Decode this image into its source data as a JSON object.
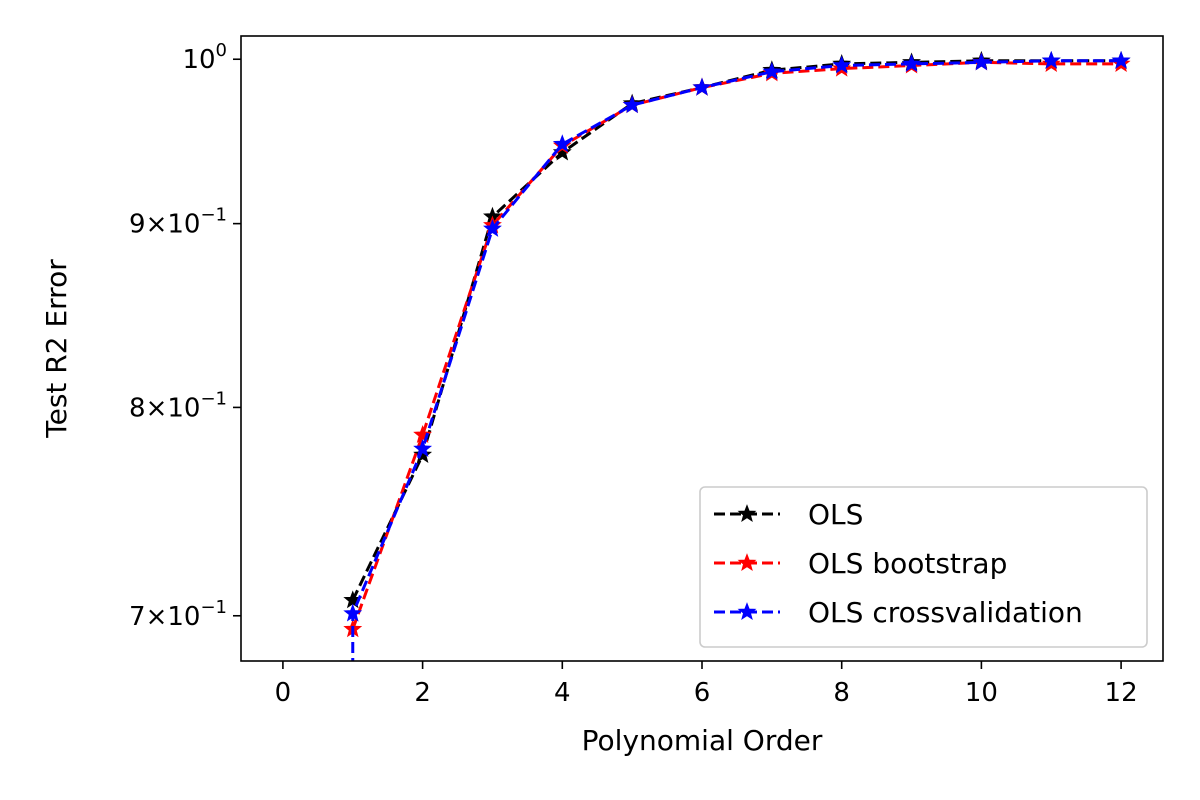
{
  "chart_data": {
    "type": "line",
    "title": "",
    "xlabel": "Polynomial Order",
    "ylabel": "Test R2 Error",
    "yscale": "log",
    "xlim": [
      -0.6,
      12.6
    ],
    "ylim": [
      0.68,
      1.015
    ],
    "x_ticks": [
      {
        "value": 0,
        "label": "0"
      },
      {
        "value": 2,
        "label": "2"
      },
      {
        "value": 4,
        "label": "4"
      },
      {
        "value": 6,
        "label": "6"
      },
      {
        "value": 8,
        "label": "8"
      },
      {
        "value": 10,
        "label": "10"
      },
      {
        "value": 12,
        "label": "12"
      }
    ],
    "y_ticks": [
      {
        "value": 0.7,
        "mant": "7",
        "exp": "−1"
      },
      {
        "value": 0.8,
        "mant": "8",
        "exp": "−1"
      },
      {
        "value": 0.9,
        "mant": "9",
        "exp": "−1"
      },
      {
        "value": 1.0,
        "mant": "10",
        "exp": "0"
      }
    ],
    "x": [
      1,
      2,
      3,
      4,
      5,
      6,
      7,
      8,
      9,
      10,
      11,
      12
    ],
    "series": [
      {
        "name": "OLS",
        "color": "#000000",
        "values": [
          0.707,
          0.776,
          0.904,
          0.942,
          0.972,
          0.982,
          0.993,
          0.997,
          0.998,
          0.999,
          0.999,
          0.999
        ]
      },
      {
        "name": "OLS bootstrap",
        "color": "#ff0000",
        "values": [
          0.694,
          0.786,
          0.899,
          0.946,
          0.971,
          0.982,
          0.991,
          0.994,
          0.996,
          0.998,
          0.997,
          0.997
        ]
      },
      {
        "name": "OLS crossvalidation",
        "color": "#0000ff",
        "values": [
          0.701,
          0.779,
          0.897,
          0.947,
          0.971,
          0.982,
          0.992,
          0.996,
          0.997,
          0.998,
          0.999,
          0.999
        ],
        "drop_below_axis_at_start": true
      }
    ],
    "grid": false,
    "legend_position": "lower-right"
  }
}
